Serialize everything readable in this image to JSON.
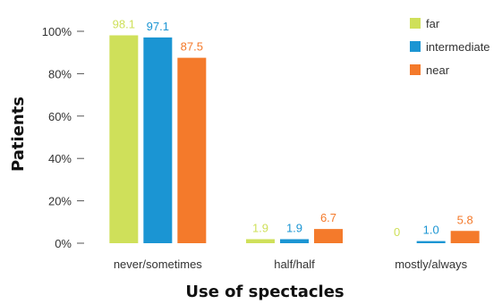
{
  "chart_data": {
    "type": "bar",
    "title": "",
    "xlabel": "Use of spectacles",
    "ylabel": "Patients",
    "categories": [
      "never/sometimes",
      "half/half",
      "mostly/always"
    ],
    "series": [
      {
        "name": "far",
        "values": [
          98.1,
          1.9,
          0
        ],
        "value_labels": [
          "98.1",
          "1.9",
          "0"
        ],
        "color": "#cfe05a"
      },
      {
        "name": "intermediate",
        "values": [
          97.1,
          1.9,
          1.0
        ],
        "value_labels": [
          "97.1",
          "1.9",
          "1.0"
        ],
        "color": "#1b95d3"
      },
      {
        "name": "near",
        "values": [
          87.5,
          6.7,
          5.8
        ],
        "value_labels": [
          "87.5",
          "6.7",
          "5.8"
        ],
        "color": "#f47a2b"
      }
    ],
    "ylim": [
      0,
      100
    ],
    "yticks": [
      0,
      20,
      40,
      60,
      80,
      100
    ],
    "ytick_labels": [
      "0%",
      "20%",
      "40%",
      "60%",
      "80%",
      "100%"
    ],
    "grid": false,
    "legend_position": "top-right"
  }
}
